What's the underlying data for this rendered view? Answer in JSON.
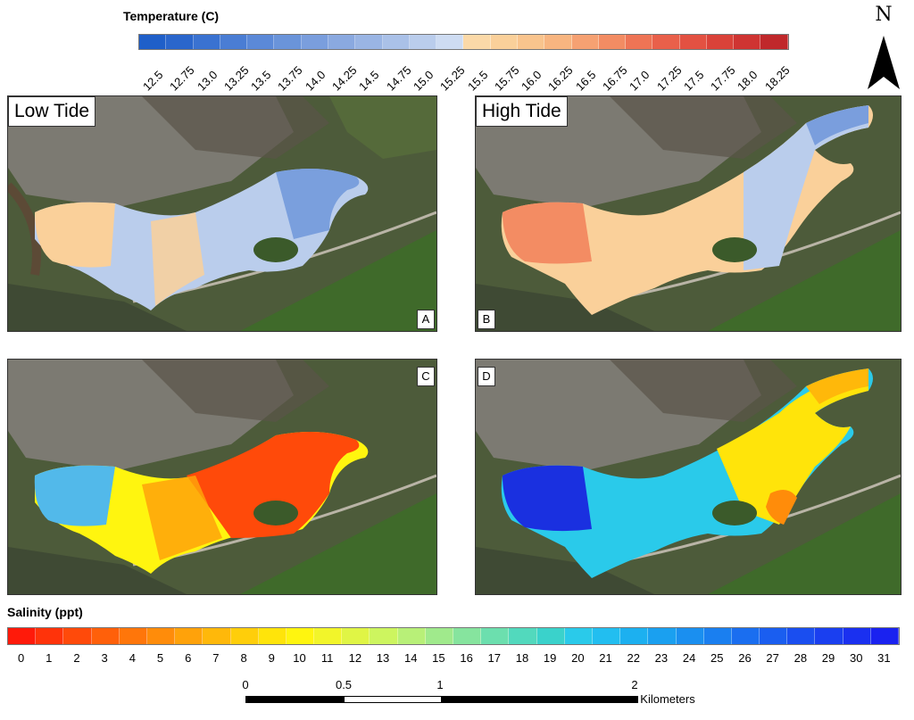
{
  "temperature_legend": {
    "title": "Temperature (C)",
    "ticks": [
      "12.5",
      "12.75",
      "13.0",
      "13.25",
      "13.5",
      "13.75",
      "14.0",
      "14.25",
      "14.5",
      "14.75",
      "15.0",
      "15.25",
      "15.5",
      "15.75",
      "16.0",
      "16.25",
      "16.5",
      "16.75",
      "17.0",
      "17.25",
      "17.5",
      "17.75",
      "18.0",
      "18.25"
    ],
    "colors": [
      "#1f5fc9",
      "#2a66cc",
      "#3a72d1",
      "#4a7dd4",
      "#5b89d8",
      "#6a94da",
      "#7a9edd",
      "#8aa9e0",
      "#9ab5e4",
      "#aac1e8",
      "#bacdec",
      "#cedcf2",
      "#fbd9a8",
      "#fad09a",
      "#f9c48d",
      "#f8b580",
      "#f6a172",
      "#f38c63",
      "#ee7455",
      "#e9604a",
      "#e35142",
      "#da4239",
      "#cf3432",
      "#c0282b"
    ]
  },
  "north_arrow": {
    "label": "N"
  },
  "panels": [
    {
      "id": "A",
      "title": "Low Tide",
      "letter": "A"
    },
    {
      "id": "B",
      "title": "High Tide",
      "letter": "B"
    },
    {
      "id": "C",
      "title": "",
      "letter": "C"
    },
    {
      "id": "D",
      "title": "",
      "letter": "D"
    }
  ],
  "salinity_legend": {
    "title": "Salinity (ppt)",
    "ticks": [
      "0",
      "1",
      "2",
      "3",
      "4",
      "5",
      "6",
      "7",
      "8",
      "9",
      "10",
      "11",
      "12",
      "13",
      "14",
      "15",
      "16",
      "17",
      "18",
      "19",
      "20",
      "21",
      "22",
      "23",
      "24",
      "25",
      "26",
      "27",
      "28",
      "29",
      "30",
      "31"
    ],
    "colors": [
      "#ff1a0a",
      "#ff330a",
      "#ff4a0a",
      "#ff600a",
      "#ff760a",
      "#ff8c0a",
      "#ffa20a",
      "#ffb80a",
      "#ffce0a",
      "#ffe40a",
      "#fff50f",
      "#f2f52a",
      "#e0f545",
      "#cdf55f",
      "#b8f078",
      "#a0ea8c",
      "#86e49e",
      "#6cdfae",
      "#52d9bd",
      "#3ad2cb",
      "#2acaea",
      "#22bef0",
      "#1cb0f0",
      "#1aa0f0",
      "#1a8ff0",
      "#1a7ff0",
      "#1a6ef0",
      "#1a5ef0",
      "#1a4ef0",
      "#1a3ff0",
      "#1a30f0",
      "#1a22f0"
    ]
  },
  "scale_bar": {
    "labels": [
      "0",
      "0.5",
      "1",
      "2"
    ],
    "unit": "Kilometers"
  }
}
